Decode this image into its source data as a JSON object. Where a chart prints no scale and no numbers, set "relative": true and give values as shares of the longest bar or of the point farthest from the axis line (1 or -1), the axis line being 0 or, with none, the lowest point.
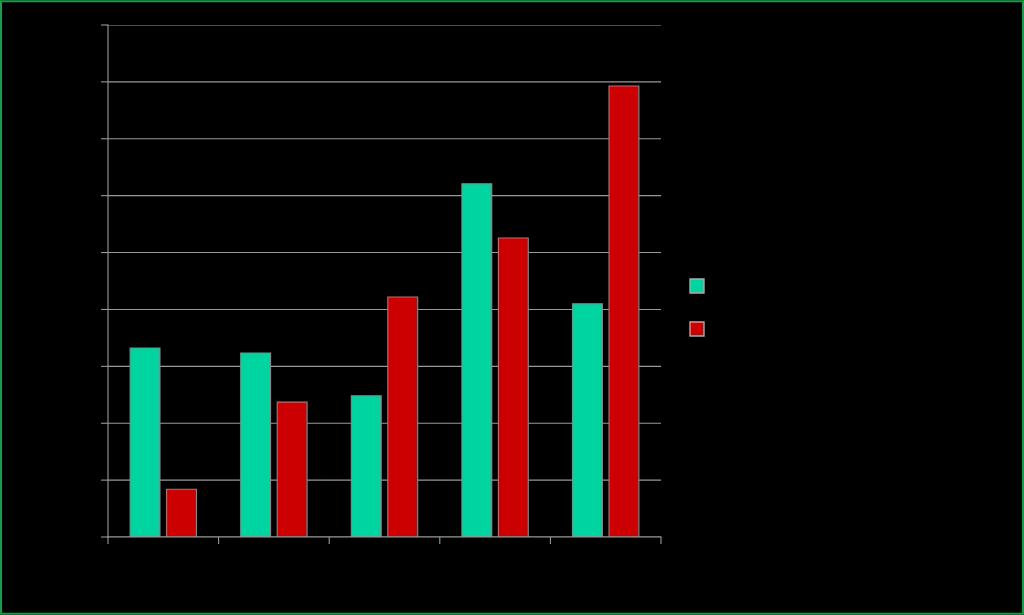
{
  "chart_data": {
    "type": "bar",
    "relative": true,
    "categories": [
      null,
      null,
      null,
      null,
      null
    ],
    "series": [
      {
        "color": "#00d4a0",
        "values": [
          0.419,
          0.408,
          0.313,
          0.783,
          0.517
        ]
      },
      {
        "color": "#cc0000",
        "values": [
          0.106,
          0.299,
          0.532,
          0.663,
          1
        ]
      }
    ],
    "grid": "y"
  }
}
